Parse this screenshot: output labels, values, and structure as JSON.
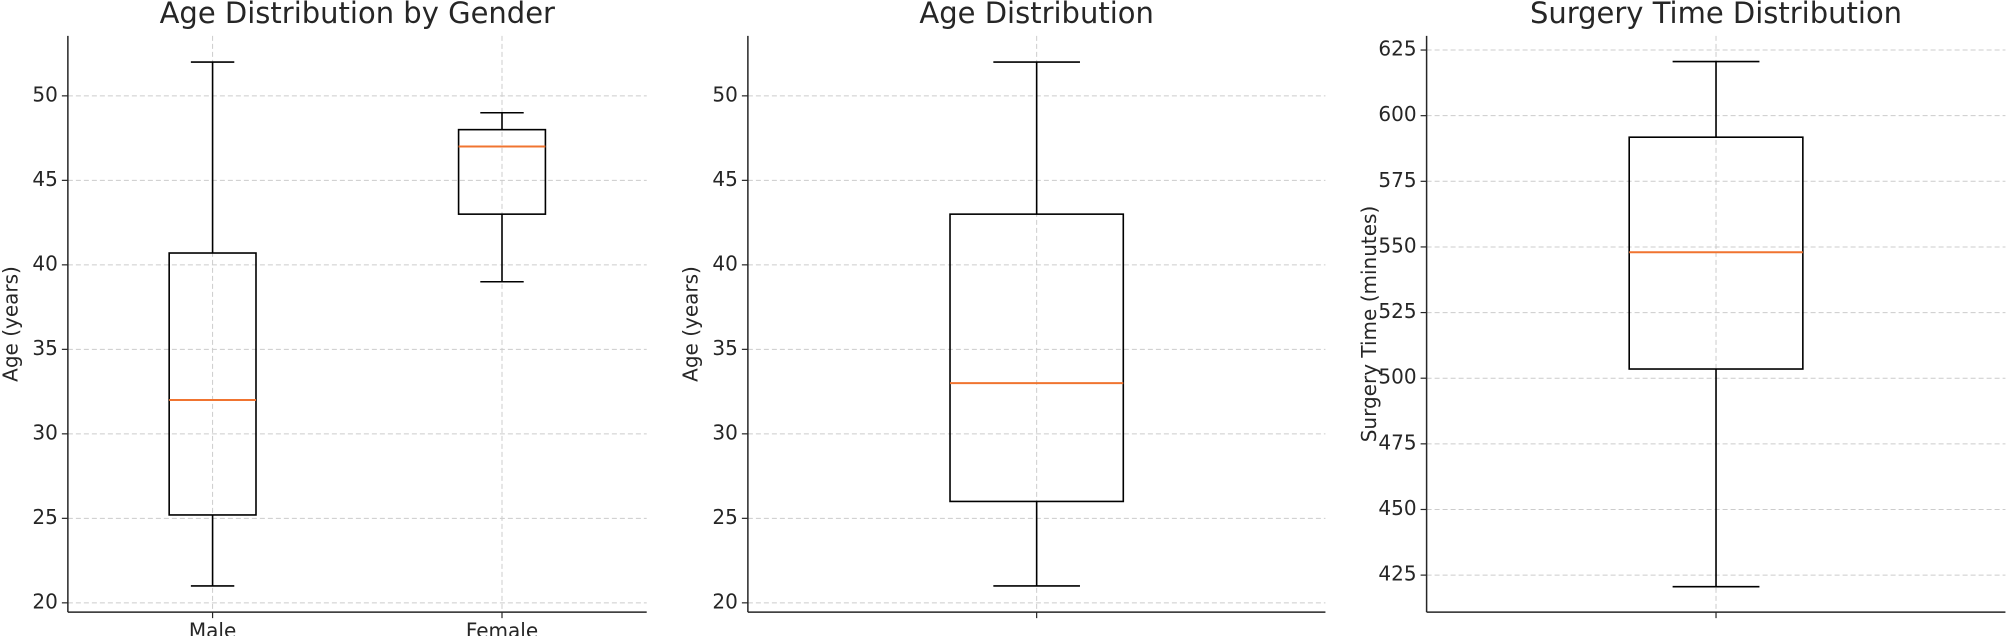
{
  "chart_data": [
    {
      "type": "box",
      "title": "Age Distribution by Gender",
      "ylabel": "Age (years)",
      "categories": [
        "Male",
        "Female"
      ],
      "boxes": [
        {
          "low": 21,
          "q1": 25.2,
          "median": 32,
          "q3": 40.7,
          "high": 52
        },
        {
          "low": 39,
          "q1": 43,
          "median": 47,
          "q3": 48,
          "high": 49
        }
      ],
      "ylim": [
        19.45,
        53.55
      ],
      "yticks": [
        20,
        25,
        30,
        35,
        40,
        45,
        50
      ],
      "grid": true,
      "color": "#000000",
      "median_color": "#f07430"
    },
    {
      "type": "box",
      "title": "Age Distribution",
      "ylabel": "Age (years)",
      "categories": [
        null
      ],
      "boxes": [
        {
          "low": 21,
          "q1": 26,
          "median": 33,
          "q3": 43,
          "high": 52
        }
      ],
      "ylim": [
        19.45,
        53.55
      ],
      "yticks": [
        20,
        25,
        30,
        35,
        40,
        45,
        50
      ],
      "grid": true,
      "color": "#000000",
      "median_color": "#f07430"
    },
    {
      "type": "box",
      "title": "Surgery Time Distribution",
      "ylabel": "Surgery Time (minutes)",
      "categories": [
        null
      ],
      "boxes": [
        {
          "low": 420.6,
          "q1": 503.5,
          "median": 548,
          "q3": 591.8,
          "high": 620.6
        }
      ],
      "ylim": [
        410.9,
        630.4
      ],
      "yticks": [
        425,
        450,
        475,
        500,
        525,
        550,
        575,
        600,
        625
      ],
      "grid": true,
      "color": "#000000",
      "median_color": "#f07430"
    }
  ]
}
